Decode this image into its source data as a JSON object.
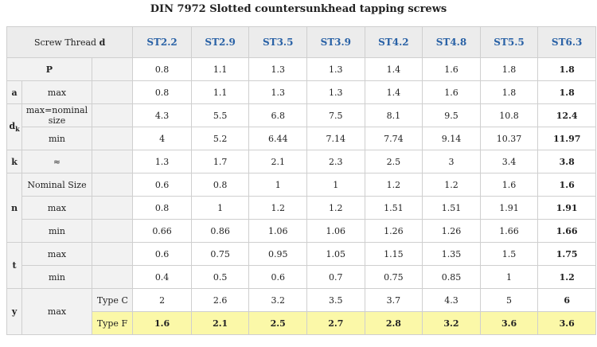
{
  "title": "DIN 7972 Slotted countersunkhead tapping screws",
  "header": {
    "screw_thread": "Screw Thread",
    "d": "d",
    "sizes": [
      "ST2.2",
      "ST2.9",
      "ST3.5",
      "ST3.9",
      "ST4.2",
      "ST4.8",
      "ST5.5",
      "ST6.3"
    ]
  },
  "labels": {
    "P": "P",
    "a": "a",
    "dk": "d",
    "dk_sub": "k",
    "k": "k",
    "n": "n",
    "t": "t",
    "y": "y",
    "max": "max",
    "min": "min",
    "max_nominal": "max=nominal size",
    "approx": "≈",
    "nominal_size": "Nominal Size",
    "type_c": "Type C",
    "type_f": "Type F"
  },
  "rows": {
    "P": [
      "0.8",
      "1.1",
      "1.3",
      "1.3",
      "1.4",
      "1.6",
      "1.8",
      "1.8"
    ],
    "a_max": [
      "0.8",
      "1.1",
      "1.3",
      "1.3",
      "1.4",
      "1.6",
      "1.8",
      "1.8"
    ],
    "dk_max": [
      "4.3",
      "5.5",
      "6.8",
      "7.5",
      "8.1",
      "9.5",
      "10.8",
      "12.4"
    ],
    "dk_min": [
      "4",
      "5.2",
      "6.44",
      "7.14",
      "7.74",
      "9.14",
      "10.37",
      "11.97"
    ],
    "k": [
      "1.3",
      "1.7",
      "2.1",
      "2.3",
      "2.5",
      "3",
      "3.4",
      "3.8"
    ],
    "n_nom": [
      "0.6",
      "0.8",
      "1",
      "1",
      "1.2",
      "1.2",
      "1.6",
      "1.6"
    ],
    "n_max": [
      "0.8",
      "1",
      "1.2",
      "1.2",
      "1.51",
      "1.51",
      "1.91",
      "1.91"
    ],
    "n_min": [
      "0.66",
      "0.86",
      "1.06",
      "1.06",
      "1.26",
      "1.26",
      "1.66",
      "1.66"
    ],
    "t_max": [
      "0.6",
      "0.75",
      "0.95",
      "1.05",
      "1.15",
      "1.35",
      "1.5",
      "1.75"
    ],
    "t_min": [
      "0.4",
      "0.5",
      "0.6",
      "0.7",
      "0.75",
      "0.85",
      "1",
      "1.2"
    ],
    "y_c": [
      "2",
      "2.6",
      "3.2",
      "3.5",
      "3.7",
      "4.3",
      "5",
      "6"
    ],
    "y_f": [
      "1.6",
      "2.1",
      "2.5",
      "2.7",
      "2.8",
      "3.2",
      "3.6",
      "3.6"
    ]
  },
  "colors": {
    "header_text": "#2a62a6",
    "highlight": "#fbf8a8"
  }
}
